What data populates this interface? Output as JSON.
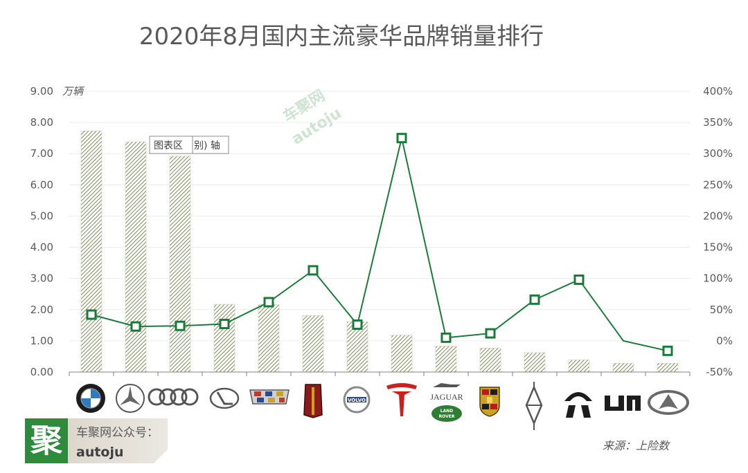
{
  "chart_data": {
    "type": "bar",
    "title": "2020年8月国内主流豪华品牌销量排行",
    "ylabel_left": "万辆",
    "ylim_left": [
      0,
      9
    ],
    "ylim_right": [
      -50,
      400
    ],
    "left_ticks": [
      "0.00",
      "1.00",
      "2.00",
      "3.00",
      "4.00",
      "5.00",
      "6.00",
      "7.00",
      "8.00",
      "9.00"
    ],
    "right_ticks": [
      "-50%",
      "0%",
      "50%",
      "100%",
      "150%",
      "200%",
      "250%",
      "300%",
      "350%",
      "400%"
    ],
    "categories": [
      "BMW",
      "Mercedes-Benz",
      "Audi",
      "Lexus",
      "Cadillac",
      "Hongqi",
      "Volvo",
      "Tesla",
      "Jaguar Land Rover",
      "Porsche",
      "Lincoln",
      "NIO",
      "Li Auto",
      "Infiniti"
    ],
    "series": [
      {
        "values": [
          7.73,
          7.38,
          6.92,
          2.17,
          2.16,
          1.81,
          1.61,
          1.18,
          0.83,
          0.77,
          0.62,
          0.39,
          0.28,
          0.28
        ]
      },
      {
        "values": [
          42,
          23,
          24,
          27,
          62,
          113,
          26,
          325,
          5,
          12,
          66,
          98,
          0,
          -16
        ]
      }
    ],
    "grid": true
  },
  "ui": {
    "tooltip": {
      "label": "图表区",
      "trailing": "别) 轴"
    },
    "watermark": {
      "line1": "车聚网",
      "line2": "autoju"
    },
    "source": "来源：上险数",
    "brand_box": {
      "logo_char": "聚",
      "line1": "车聚网公众号：",
      "line2": "autoju"
    },
    "brand_labels": {
      "jaguar": "JAGUAR",
      "land_rover_1": "LAND",
      "land_rover_2": "ROVER",
      "volvo": "VOLVO"
    }
  },
  "colors": {
    "bar_pattern": "#5d6b33",
    "line": "#1a7a3a",
    "marker_fill": "#ffffff",
    "grid": "#ececec",
    "axis": "#7f7f7f",
    "brand_green": "#2e8b3e",
    "brand_box_bg": "#dcd8cf"
  }
}
